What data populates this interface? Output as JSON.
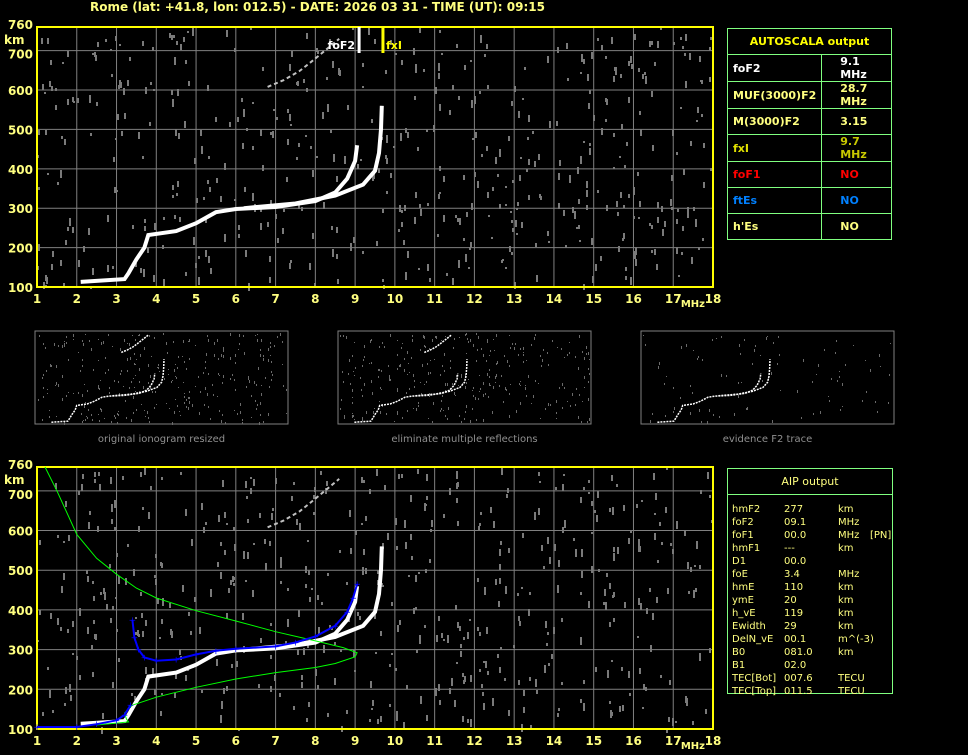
{
  "title": "Rome (lat: +41.8, lon: 012.5) - DATE: 2026 03 31 - TIME (UT): 09:15",
  "colors": {
    "axis": "#ffff00",
    "grid": "#808080",
    "label": "#ffff80",
    "table_border": "#80ff80",
    "o_trace": "#ffffff",
    "profile": "#00ff00",
    "aip_trace": "#0000ff",
    "red": "#ff0000",
    "blue": "#0080ff"
  },
  "autoscala": {
    "header": "AUTOSCALA output",
    "rows": [
      {
        "name": "foF2",
        "value": "9.1 MHz",
        "color": "#ffffff",
        "vcolor": "#ffffff"
      },
      {
        "name": "MUF(3000)F2",
        "value": "28.7 MHz",
        "color": "#ffff80",
        "vcolor": "#ffff80"
      },
      {
        "name": "M(3000)F2",
        "value": "3.15",
        "color": "#ffff80",
        "vcolor": "#ffff80"
      },
      {
        "name": "fxI",
        "value": "9.7 MHz",
        "color": "#e0e000",
        "vcolor": "#c8c800"
      },
      {
        "name": "foF1",
        "value": "NO",
        "color": "#ff0000",
        "vcolor": "#ff0000"
      },
      {
        "name": "ftEs",
        "value": "NO",
        "color": "#0080ff",
        "vcolor": "#0080ff"
      },
      {
        "name": "h'Es",
        "value": "NO",
        "color": "#ffff80",
        "vcolor": "#ffff80"
      }
    ]
  },
  "aip": {
    "header": "AIP output",
    "rows": [
      [
        "hmF2",
        "277",
        "km",
        ""
      ],
      [
        "foF2",
        "09.1",
        "MHz",
        ""
      ],
      [
        "foF1",
        "00.0",
        "MHz",
        "[PN]"
      ],
      [
        "hmF1",
        "---",
        "km",
        ""
      ],
      [
        "D1",
        "00.0",
        "",
        ""
      ],
      [
        "foE",
        "3.4",
        "MHz",
        ""
      ],
      [
        "hmE",
        "110",
        "km",
        ""
      ],
      [
        "ymE",
        "20",
        "km",
        ""
      ],
      [
        "h_vE",
        "119",
        "km",
        ""
      ],
      [
        "Ewidth",
        "29",
        "km",
        ""
      ],
      [
        "DelN_vE",
        "00.1",
        "m^(-3)",
        ""
      ],
      [
        "B0",
        "081.0",
        "km",
        ""
      ],
      [
        "B1",
        "02.0",
        "",
        ""
      ],
      [
        "TEC[Bot]",
        "007.6",
        "TECU",
        ""
      ],
      [
        "TEC[Top]",
        "011.5",
        "TECU",
        ""
      ]
    ]
  },
  "panels": [
    {
      "label": "original ionogram resized"
    },
    {
      "label": "eliminate multiple reflections"
    },
    {
      "label": "evidence F2 trace"
    }
  ],
  "chart_data": [
    {
      "type": "scatter",
      "xlabel": "MHz",
      "ylabel": "km",
      "xlim": [
        1,
        18
      ],
      "ylim": [
        100,
        760
      ],
      "xticks": [
        "1",
        "2",
        "3",
        "4",
        "5",
        "6",
        "7",
        "8",
        "9",
        "10",
        "11",
        "12",
        "13",
        "14",
        "15",
        "16",
        "17",
        "18"
      ],
      "yticks": [
        "100",
        "200",
        "300",
        "400",
        "500",
        "600",
        "700",
        "760"
      ],
      "grid": true,
      "markers": [
        {
          "name": "foF2",
          "x": 9.1,
          "color": "#ffffff"
        },
        {
          "name": "fxI",
          "x": 9.7,
          "color": "#ffff00"
        }
      ],
      "series": [
        {
          "role": "o-trace",
          "color": "#ffffff",
          "points": [
            [
              2.1,
              113
            ],
            [
              3.2,
              120
            ],
            [
              3.3,
              135
            ],
            [
              3.5,
              170
            ],
            [
              3.7,
              200
            ],
            [
              3.8,
              232
            ],
            [
              4.5,
              242
            ],
            [
              5.0,
              262
            ],
            [
              5.5,
              290
            ],
            [
              6,
              298
            ],
            [
              7,
              303
            ],
            [
              8,
              318
            ],
            [
              8.5,
              340
            ],
            [
              8.8,
              375
            ],
            [
              9.0,
              420
            ],
            [
              9.05,
              460
            ]
          ]
        },
        {
          "role": "x-trace",
          "color": "#ffffff",
          "points": [
            [
              6.2,
              300
            ],
            [
              7.5,
              312
            ],
            [
              8.5,
              332
            ],
            [
              9.2,
              360
            ],
            [
              9.5,
              395
            ],
            [
              9.6,
              440
            ],
            [
              9.65,
              500
            ],
            [
              9.67,
              560
            ]
          ]
        },
        {
          "role": "multiple-reflection",
          "color": "#c0c0c0",
          "points": [
            [
              6.8,
              608
            ],
            [
              7.2,
              625
            ],
            [
              7.6,
              648
            ],
            [
              7.9,
              672
            ],
            [
              8.3,
              705
            ],
            [
              8.6,
              730
            ]
          ]
        }
      ]
    },
    {
      "type": "line",
      "xlabel": "MHz",
      "ylabel": "km",
      "xlim": [
        1,
        18
      ],
      "ylim": [
        100,
        760
      ],
      "xticks": [
        "1",
        "2",
        "3",
        "4",
        "5",
        "6",
        "7",
        "8",
        "9",
        "10",
        "11",
        "12",
        "13",
        "14",
        "15",
        "16",
        "17",
        "18"
      ],
      "yticks": [
        "100",
        "200",
        "300",
        "400",
        "500",
        "600",
        "700",
        "760"
      ],
      "grid": true,
      "series": [
        {
          "role": "o-trace",
          "color": "#ffffff",
          "points": [
            [
              2.1,
              113
            ],
            [
              3.2,
              120
            ],
            [
              3.3,
              135
            ],
            [
              3.5,
              170
            ],
            [
              3.7,
              200
            ],
            [
              3.8,
              232
            ],
            [
              4.5,
              242
            ],
            [
              5.0,
              262
            ],
            [
              5.5,
              290
            ],
            [
              6,
              298
            ],
            [
              7,
              303
            ],
            [
              8,
              318
            ],
            [
              8.5,
              340
            ],
            [
              8.8,
              375
            ],
            [
              9.0,
              420
            ],
            [
              9.05,
              460
            ]
          ]
        },
        {
          "role": "x-trace",
          "color": "#ffffff",
          "points": [
            [
              6.2,
              300
            ],
            [
              7.5,
              312
            ],
            [
              8.5,
              332
            ],
            [
              9.2,
              360
            ],
            [
              9.5,
              395
            ],
            [
              9.6,
              440
            ],
            [
              9.65,
              500
            ],
            [
              9.67,
              560
            ]
          ]
        },
        {
          "role": "multiple-reflection",
          "color": "#c0c0c0",
          "points": [
            [
              6.8,
              608
            ],
            [
              7.2,
              625
            ],
            [
              7.6,
              648
            ],
            [
              7.9,
              672
            ],
            [
              8.3,
              705
            ],
            [
              8.6,
              730
            ]
          ]
        },
        {
          "role": "profile",
          "color": "#00ff00",
          "points": [
            [
              1.2,
              760
            ],
            [
              1.5,
              700
            ],
            [
              2,
              590
            ],
            [
              2.5,
              530
            ],
            [
              3,
              490
            ],
            [
              3.5,
              455
            ],
            [
              4,
              430
            ],
            [
              5,
              398
            ],
            [
              6,
              372
            ],
            [
              7,
              345
            ],
            [
              8,
              322
            ],
            [
              8.7,
              305
            ],
            [
              9.05,
              292
            ],
            [
              9.0,
              282
            ],
            [
              8.5,
              265
            ],
            [
              8,
              255
            ],
            [
              7,
              242
            ],
            [
              6,
              226
            ],
            [
              5,
              205
            ],
            [
              4,
              180
            ],
            [
              3.4,
              160
            ],
            [
              3.2,
              140
            ],
            [
              3.25,
              125
            ],
            [
              3.3,
              118
            ],
            [
              2.5,
              110
            ]
          ]
        },
        {
          "role": "aip-trace",
          "color": "#0000ff",
          "points": [
            [
              3.4,
              375
            ],
            [
              3.45,
              330
            ],
            [
              3.55,
              300
            ],
            [
              3.7,
              280
            ],
            [
              4,
              272
            ],
            [
              4.5,
              275
            ],
            [
              5,
              288
            ],
            [
              5.5,
              297
            ],
            [
              6,
              302
            ],
            [
              7,
              308
            ],
            [
              7.5,
              318
            ],
            [
              8,
              333
            ],
            [
              8.5,
              360
            ],
            [
              8.8,
              395
            ],
            [
              8.95,
              430
            ],
            [
              9.05,
              465
            ]
          ]
        },
        {
          "role": "aip-trace-e",
          "color": "#0000ff",
          "points": [
            [
              1,
              105
            ],
            [
              2,
              105
            ],
            [
              2.5,
              112
            ],
            [
              3,
              122
            ],
            [
              3.2,
              135
            ],
            [
              3.35,
              160
            ]
          ]
        }
      ]
    }
  ]
}
